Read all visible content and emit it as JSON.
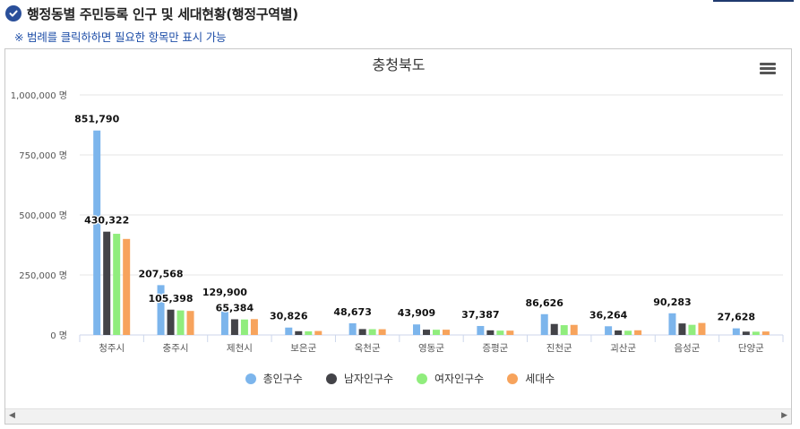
{
  "header": {
    "title": "행정동별 주민등록 인구 및 세대현황(행정구역별)",
    "notice": "※ 범례를 클릭하하면 필요한 항목만 표시 가능"
  },
  "icons": {
    "check": "check-circle-icon",
    "menu": "hamburger-menu-icon"
  },
  "chart_data": {
    "type": "bar",
    "title": "충청북도",
    "categories": [
      "청주시",
      "충주시",
      "제천시",
      "보은군",
      "옥천군",
      "영동군",
      "증평군",
      "진천군",
      "괴산군",
      "음성군",
      "단양군"
    ],
    "series": [
      {
        "name": "총인구수",
        "color": "#7cb5ec",
        "values": [
          851790,
          207568,
          129900,
          30826,
          48673,
          43909,
          37387,
          86626,
          36264,
          90283,
          27628
        ]
      },
      {
        "name": "남자인구수",
        "color": "#434348",
        "values": [
          430322,
          105398,
          65384,
          15700,
          24600,
          22100,
          19300,
          45800,
          18700,
          48000,
          14000
        ]
      },
      {
        "name": "여자인구수",
        "color": "#90ed7d",
        "values": [
          421468,
          102170,
          64516,
          15126,
          24073,
          21809,
          18087,
          40826,
          17564,
          42283,
          13628
        ]
      },
      {
        "name": "세대수",
        "color": "#f7a35c",
        "values": [
          400000,
          100000,
          66000,
          16500,
          24000,
          22000,
          18000,
          42000,
          19500,
          50000,
          14500
        ]
      }
    ],
    "data_labels": [
      {
        "series": 0,
        "index": 0,
        "text": "851,790"
      },
      {
        "series": 1,
        "index": 0,
        "text": "430,322"
      },
      {
        "series": 0,
        "index": 1,
        "text": "207,568"
      },
      {
        "series": 1,
        "index": 1,
        "text": "105,398"
      },
      {
        "series": 0,
        "index": 2,
        "text": "129,900"
      },
      {
        "series": 1,
        "index": 2,
        "text": "65,384"
      },
      {
        "series": 0,
        "index": 3,
        "text": "30,826"
      },
      {
        "series": 0,
        "index": 4,
        "text": "48,673"
      },
      {
        "series": 0,
        "index": 5,
        "text": "43,909"
      },
      {
        "series": 0,
        "index": 6,
        "text": "37,387"
      },
      {
        "series": 0,
        "index": 7,
        "text": "86,626"
      },
      {
        "series": 0,
        "index": 8,
        "text": "36,264"
      },
      {
        "series": 0,
        "index": 9,
        "text": "90,283"
      },
      {
        "series": 0,
        "index": 10,
        "text": "27,628"
      }
    ],
    "y_ticks": [
      {
        "value": 0,
        "label": "0 명"
      },
      {
        "value": 250000,
        "label": "250,000 명"
      },
      {
        "value": 500000,
        "label": "500,000 명"
      },
      {
        "value": 750000,
        "label": "750,000 명"
      },
      {
        "value": 1000000,
        "label": "1,000,000 명"
      }
    ],
    "ylim": [
      0,
      1000000
    ],
    "grid": true,
    "legend": "bottom-center"
  }
}
